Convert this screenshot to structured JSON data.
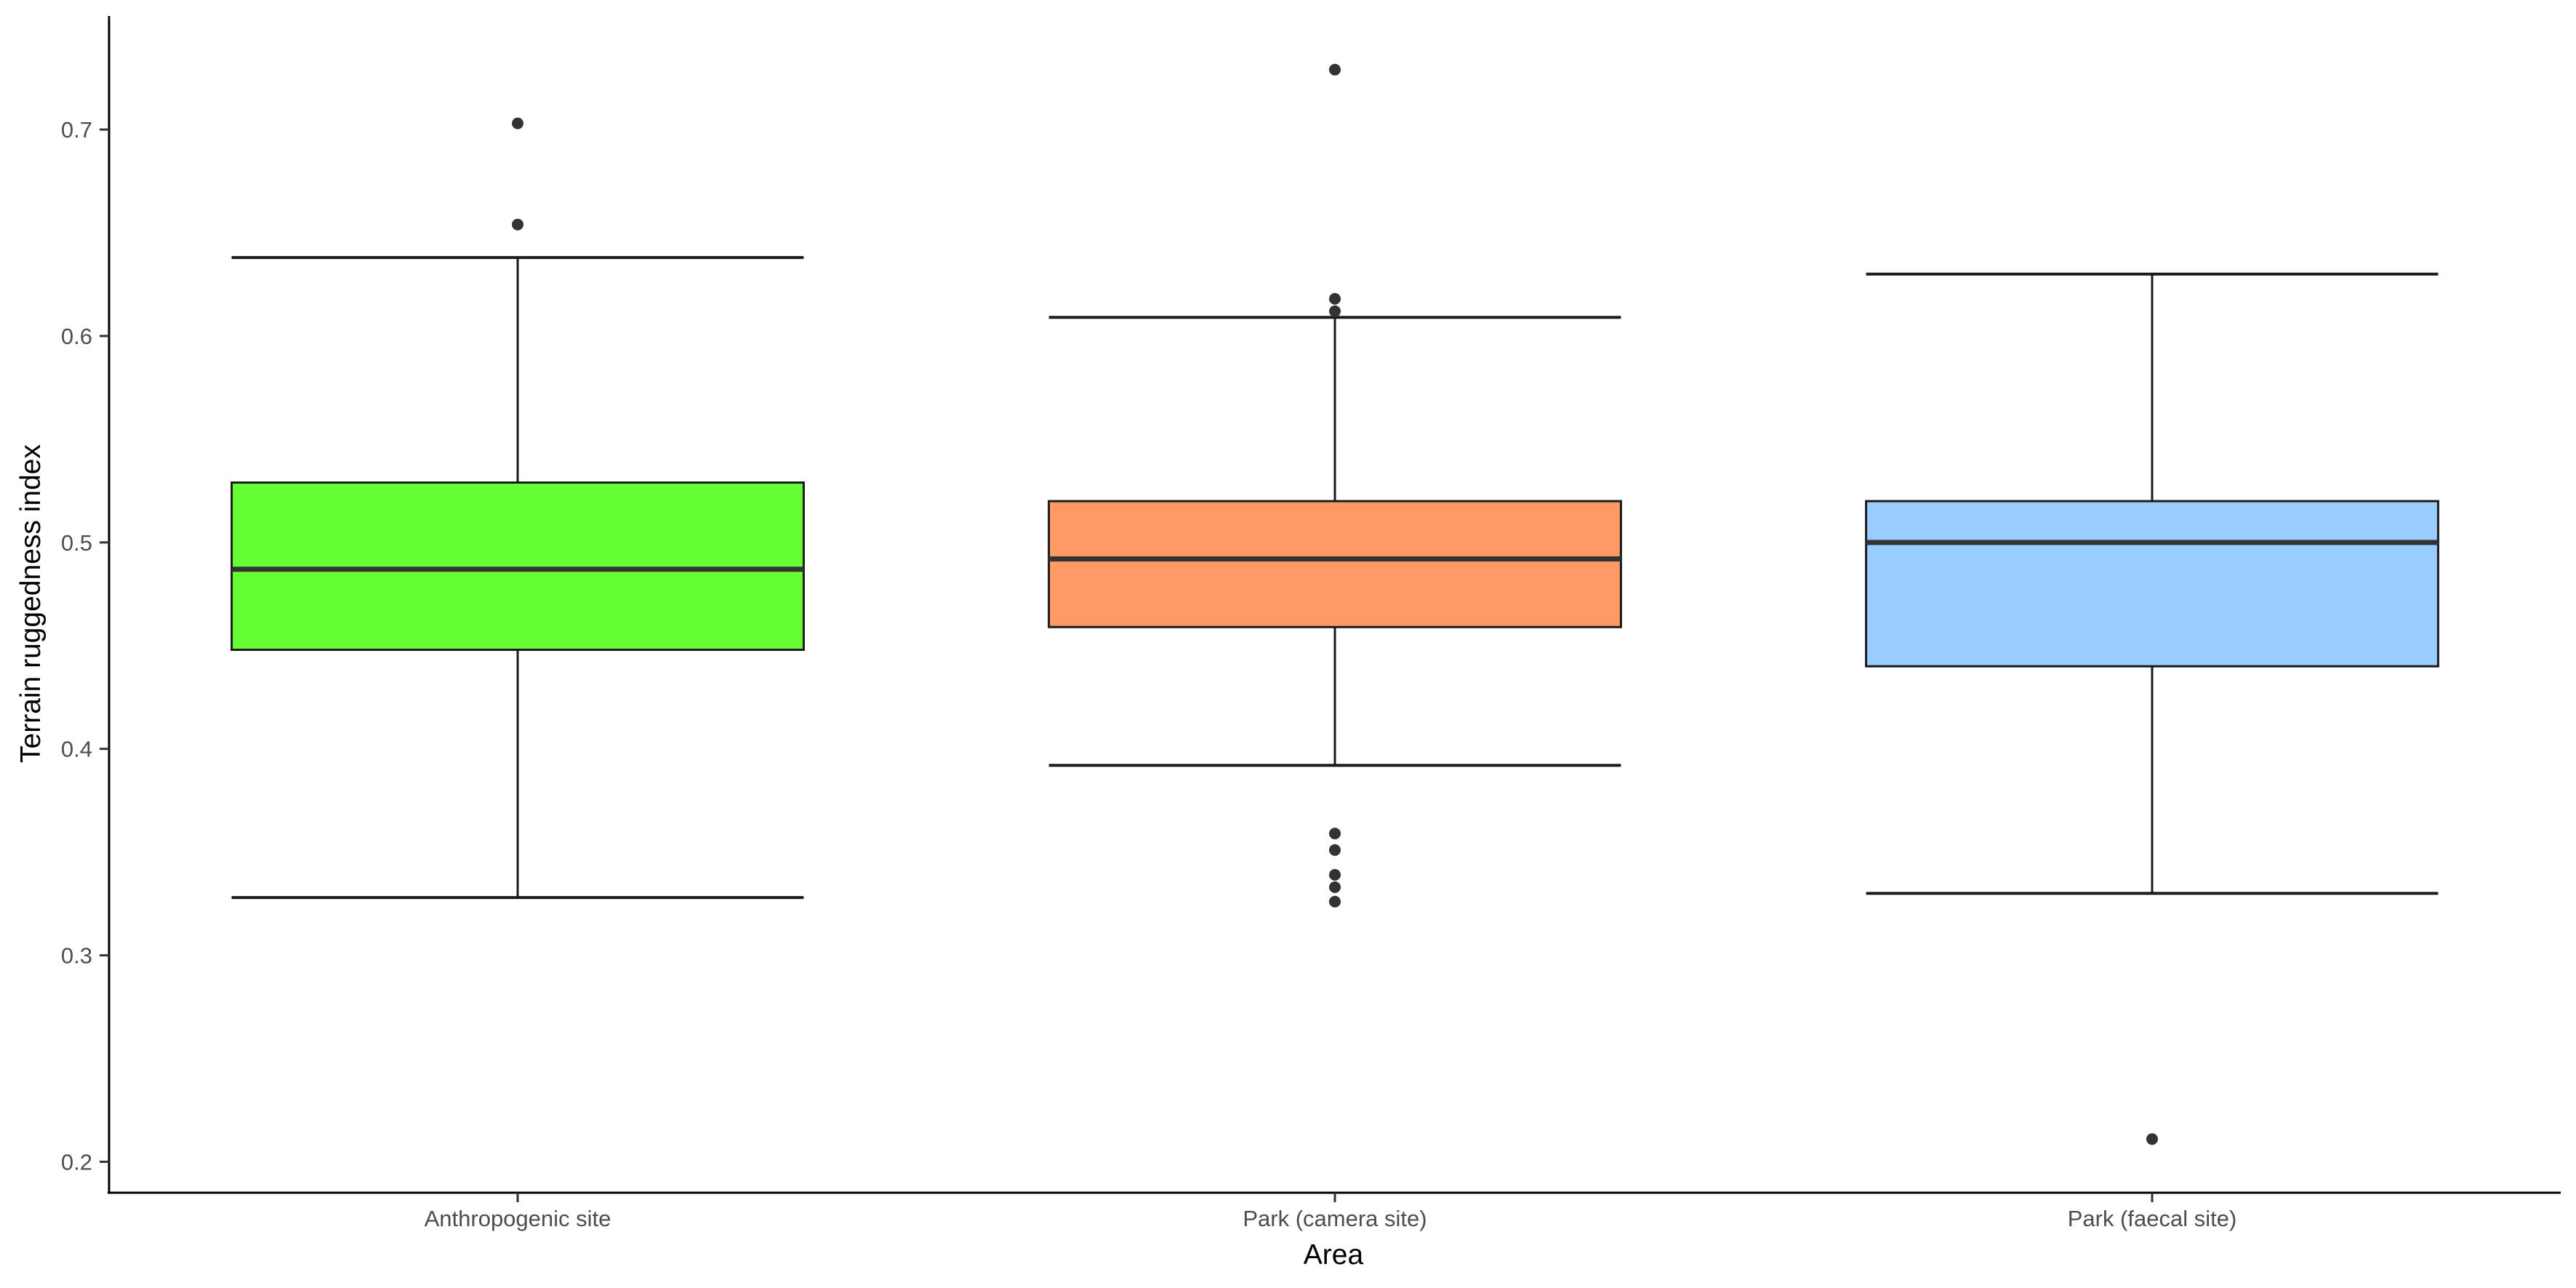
{
  "chart_data": {
    "type": "box",
    "xlabel": "Area",
    "ylabel": "Terrain ruggedness index",
    "ylim": [
      0.185,
      0.755
    ],
    "yticks": [
      0.2,
      0.3,
      0.4,
      0.5,
      0.6,
      0.7
    ],
    "ytick_labels": [
      "0.2",
      "0.3",
      "0.4",
      "0.5",
      "0.6",
      "0.7"
    ],
    "grid": false,
    "legend": "none",
    "categories": [
      "Anthropogenic site",
      "Park (camera site)",
      "Park (faecal site)"
    ],
    "boxes": [
      {
        "category": "Anthropogenic site",
        "fill": "#66ff33",
        "whisker_low": 0.328,
        "q1": 0.448,
        "median": 0.487,
        "q3": 0.529,
        "whisker_high": 0.638,
        "outliers": [
          0.654,
          0.703
        ]
      },
      {
        "category": "Park (camera site)",
        "fill": "#ff9966",
        "whisker_low": 0.392,
        "q1": 0.459,
        "median": 0.492,
        "q3": 0.52,
        "whisker_high": 0.609,
        "outliers": [
          0.729,
          0.618,
          0.612,
          0.359,
          0.351,
          0.339,
          0.333,
          0.326
        ]
      },
      {
        "category": "Park (faecal site)",
        "fill": "#99ccff",
        "whisker_low": 0.33,
        "q1": 0.44,
        "median": 0.5,
        "q3": 0.52,
        "whisker_high": 0.63,
        "outliers": [
          0.211
        ]
      }
    ]
  }
}
